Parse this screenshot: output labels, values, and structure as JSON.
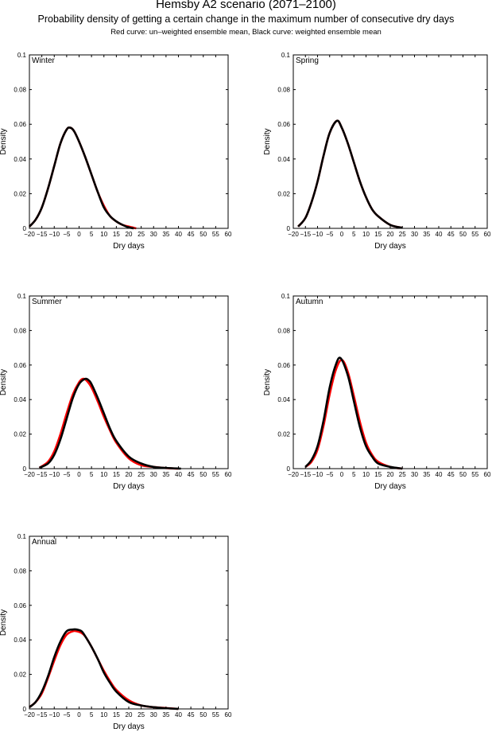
{
  "title": "Hemsby A2 scenario (2071–2100)",
  "subtitle": "Probability density of getting a certain change in the maximum number of consecutive dry days",
  "note": "Red curve: un–weighted ensemble mean, Black curve: weighted ensemble mean",
  "colors": {
    "unweighted": "#ff0000",
    "weighted": "#000000"
  },
  "chart_data": [
    {
      "type": "line",
      "title": "Winter",
      "xlabel": "Dry days",
      "ylabel": "Density",
      "xlim": [
        -20,
        60
      ],
      "ylim": [
        0,
        0.1
      ],
      "xticks": [
        -20,
        -15,
        -10,
        -5,
        0,
        5,
        10,
        15,
        20,
        25,
        30,
        35,
        40,
        45,
        50,
        55,
        60
      ],
      "yticks": [
        0,
        0.02,
        0.04,
        0.06,
        0.08,
        0.1
      ],
      "series": [
        {
          "name": "un-weighted ensemble mean",
          "color": "#ff0000",
          "x": [
            -20,
            -17.5,
            -15,
            -12.5,
            -10,
            -7.5,
            -5,
            -3.5,
            -2,
            0,
            2.5,
            5,
            7.5,
            10,
            12.5,
            15,
            17.5,
            20,
            23
          ],
          "y": [
            0.001,
            0.005,
            0.012,
            0.023,
            0.036,
            0.049,
            0.057,
            0.058,
            0.056,
            0.05,
            0.041,
            0.031,
            0.021,
            0.013,
            0.007,
            0.004,
            0.002,
            0.001,
            0.0
          ]
        },
        {
          "name": "weighted ensemble mean",
          "color": "#000000",
          "x": [
            -20,
            -17.5,
            -15,
            -12.5,
            -10,
            -7.5,
            -5,
            -3.5,
            -2,
            0,
            2.5,
            5,
            7.5,
            10,
            12.5,
            15,
            17.5,
            20,
            22
          ],
          "y": [
            0.001,
            0.005,
            0.012,
            0.023,
            0.036,
            0.049,
            0.057,
            0.058,
            0.056,
            0.05,
            0.041,
            0.031,
            0.021,
            0.012,
            0.007,
            0.004,
            0.002,
            0.0005,
            0.0
          ]
        }
      ]
    },
    {
      "type": "line",
      "title": "Spring",
      "xlabel": "Dry days",
      "ylabel": "Density",
      "xlim": [
        -20,
        60
      ],
      "ylim": [
        0,
        0.1
      ],
      "xticks": [
        -20,
        -15,
        -10,
        -5,
        0,
        5,
        10,
        15,
        20,
        25,
        30,
        35,
        40,
        45,
        50,
        55,
        60
      ],
      "yticks": [
        0,
        0.02,
        0.04,
        0.06,
        0.08,
        0.1
      ],
      "series": [
        {
          "name": "un-weighted ensemble mean",
          "color": "#ff0000",
          "x": [
            -18,
            -15,
            -12.5,
            -10,
            -7.5,
            -5,
            -2,
            0,
            2.5,
            5,
            7.5,
            10,
            12.5,
            15,
            20,
            25
          ],
          "y": [
            0.001,
            0.006,
            0.015,
            0.027,
            0.042,
            0.055,
            0.062,
            0.058,
            0.049,
            0.038,
            0.027,
            0.018,
            0.011,
            0.007,
            0.002,
            0.0003
          ]
        },
        {
          "name": "weighted ensemble mean",
          "color": "#000000",
          "x": [
            -18,
            -15,
            -12.5,
            -10,
            -7.5,
            -5,
            -2,
            0,
            2.5,
            5,
            7.5,
            10,
            12.5,
            15,
            20,
            25
          ],
          "y": [
            0.001,
            0.006,
            0.015,
            0.027,
            0.042,
            0.055,
            0.062,
            0.058,
            0.049,
            0.038,
            0.027,
            0.018,
            0.011,
            0.007,
            0.002,
            0.0003
          ]
        }
      ]
    },
    {
      "type": "line",
      "title": "Summer",
      "xlabel": "Dry days",
      "ylabel": "Density",
      "xlim": [
        -20,
        60
      ],
      "ylim": [
        0,
        0.1
      ],
      "xticks": [
        -20,
        -15,
        -10,
        -5,
        0,
        5,
        10,
        15,
        20,
        25,
        30,
        35,
        40,
        45,
        50,
        55,
        60
      ],
      "yticks": [
        0,
        0.02,
        0.04,
        0.06,
        0.08,
        0.1
      ],
      "series": [
        {
          "name": "un-weighted ensemble mean",
          "color": "#ff0000",
          "x": [
            -16,
            -12.5,
            -10,
            -7.5,
            -5,
            -2.5,
            0,
            1.5,
            3,
            5,
            7.5,
            10,
            12.5,
            15,
            20,
            25,
            30,
            35,
            40
          ],
          "y": [
            0.0005,
            0.004,
            0.01,
            0.02,
            0.032,
            0.043,
            0.05,
            0.052,
            0.051,
            0.047,
            0.039,
            0.03,
            0.022,
            0.015,
            0.006,
            0.002,
            0.001,
            0.0003,
            0.0
          ]
        },
        {
          "name": "weighted ensemble mean",
          "color": "#000000",
          "x": [
            -16,
            -12.5,
            -10,
            -7.5,
            -5,
            -2.5,
            0,
            2.5,
            4,
            5,
            7.5,
            10,
            12.5,
            15,
            20,
            25,
            30,
            35,
            41
          ],
          "y": [
            0.0005,
            0.003,
            0.008,
            0.017,
            0.029,
            0.041,
            0.049,
            0.052,
            0.051,
            0.049,
            0.041,
            0.032,
            0.023,
            0.016,
            0.007,
            0.003,
            0.001,
            0.0004,
            0.0
          ]
        }
      ]
    },
    {
      "type": "line",
      "title": "Autumn",
      "xlabel": "Dry days",
      "ylabel": "Density",
      "xlim": [
        -20,
        60
      ],
      "ylim": [
        0,
        0.1
      ],
      "xticks": [
        -20,
        -15,
        -10,
        -5,
        0,
        5,
        10,
        15,
        20,
        25,
        30,
        35,
        40,
        45,
        50,
        55,
        60
      ],
      "yticks": [
        0,
        0.02,
        0.04,
        0.06,
        0.08,
        0.1
      ],
      "series": [
        {
          "name": "un-weighted ensemble mean",
          "color": "#ff0000",
          "x": [
            -15,
            -12.5,
            -10,
            -7.5,
            -5,
            -2.5,
            0,
            2.5,
            5,
            7.5,
            10,
            12.5,
            15,
            20,
            25
          ],
          "y": [
            0.001,
            0.004,
            0.011,
            0.025,
            0.043,
            0.057,
            0.063,
            0.056,
            0.042,
            0.027,
            0.015,
            0.008,
            0.004,
            0.001,
            0.0
          ]
        },
        {
          "name": "weighted ensemble mean",
          "color": "#000000",
          "x": [
            -15,
            -12.5,
            -10,
            -7.5,
            -5,
            -2.5,
            -0.5,
            2.5,
            5,
            7.5,
            10,
            12.5,
            15,
            20,
            25
          ],
          "y": [
            0.001,
            0.005,
            0.013,
            0.028,
            0.047,
            0.06,
            0.064,
            0.054,
            0.039,
            0.024,
            0.013,
            0.007,
            0.003,
            0.001,
            0.0
          ]
        }
      ]
    },
    {
      "type": "line",
      "title": "Annual",
      "xlabel": "Dry days",
      "ylabel": "Density",
      "xlim": [
        -20,
        60
      ],
      "ylim": [
        0,
        0.1
      ],
      "xticks": [
        -20,
        -15,
        -10,
        -5,
        0,
        5,
        10,
        15,
        20,
        25,
        30,
        35,
        40,
        45,
        50,
        55,
        60
      ],
      "yticks": [
        0,
        0.02,
        0.04,
        0.06,
        0.08,
        0.1
      ],
      "series": [
        {
          "name": "un-weighted ensemble mean",
          "color": "#ff0000",
          "x": [
            -20,
            -17.5,
            -15,
            -12.5,
            -10,
            -7.5,
            -5,
            -2.5,
            -1,
            1,
            2.5,
            5,
            7.5,
            10,
            12.5,
            15,
            20,
            25,
            30,
            35,
            40
          ],
          "y": [
            0.001,
            0.004,
            0.009,
            0.018,
            0.028,
            0.037,
            0.043,
            0.045,
            0.045,
            0.044,
            0.042,
            0.036,
            0.029,
            0.022,
            0.016,
            0.011,
            0.005,
            0.002,
            0.001,
            0.0005,
            0.0
          ]
        },
        {
          "name": "weighted ensemble mean",
          "color": "#000000",
          "x": [
            -20,
            -17.5,
            -15,
            -12.5,
            -10,
            -7.5,
            -5,
            -2.5,
            -1,
            1,
            2.5,
            5,
            7.5,
            10,
            12.5,
            15,
            20,
            25,
            30,
            35,
            40
          ],
          "y": [
            0.001,
            0.004,
            0.01,
            0.019,
            0.03,
            0.039,
            0.045,
            0.046,
            0.046,
            0.045,
            0.042,
            0.036,
            0.029,
            0.021,
            0.015,
            0.01,
            0.004,
            0.002,
            0.001,
            0.0004,
            0.0
          ]
        }
      ]
    }
  ]
}
